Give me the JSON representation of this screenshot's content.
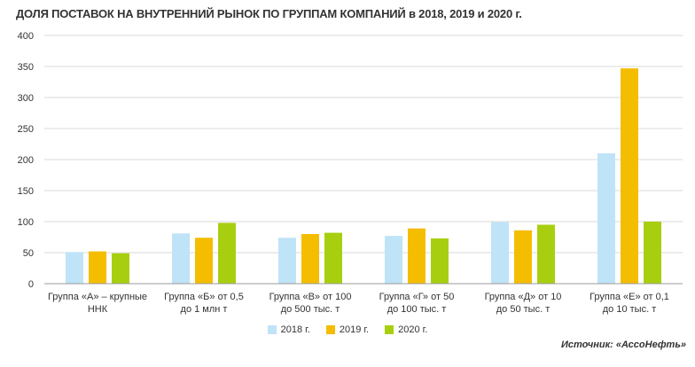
{
  "colors": {
    "s2018": "#bfe3f7",
    "s2019": "#f5bd00",
    "s2020": "#a8cf0f",
    "grid": "#d9d9d9",
    "axis": "#9a9a9a"
  },
  "source": "Источник: «АссоНефть»",
  "chart_data": {
    "type": "bar",
    "title": "ДОЛЯ ПОСТАВОК НА ВНУТРЕННИЙ РЫНОК ПО ГРУППАМ КОМПАНИЙ в 2018, 2019 и 2020 г.",
    "categories": [
      [
        "Группа «А» – крупные",
        "ННК"
      ],
      [
        "Группа «Б» от 0,5",
        "до 1 млн т"
      ],
      [
        "Группа «В» от 100",
        "до 500 тыс. т"
      ],
      [
        "Группа «Г» от 50",
        "до 100 тыс. т"
      ],
      [
        "Группа «Д» от 10",
        "до 50 тыс. т"
      ],
      [
        "Группа «Е» от 0,1",
        "до 10 тыс. т"
      ]
    ],
    "series": [
      {
        "name": "2018 г.",
        "values": [
          51,
          81,
          74,
          77,
          99,
          210
        ]
      },
      {
        "name": "2019 г.",
        "values": [
          52,
          74,
          80,
          89,
          86,
          347
        ]
      },
      {
        "name": "2020 г.",
        "values": [
          49,
          98,
          82,
          73,
          95,
          100
        ]
      }
    ],
    "ylim": [
      0,
      400
    ],
    "yticks": [
      0,
      50,
      100,
      150,
      200,
      250,
      300,
      350,
      400
    ],
    "grid": true,
    "legend": "bottom-center"
  }
}
